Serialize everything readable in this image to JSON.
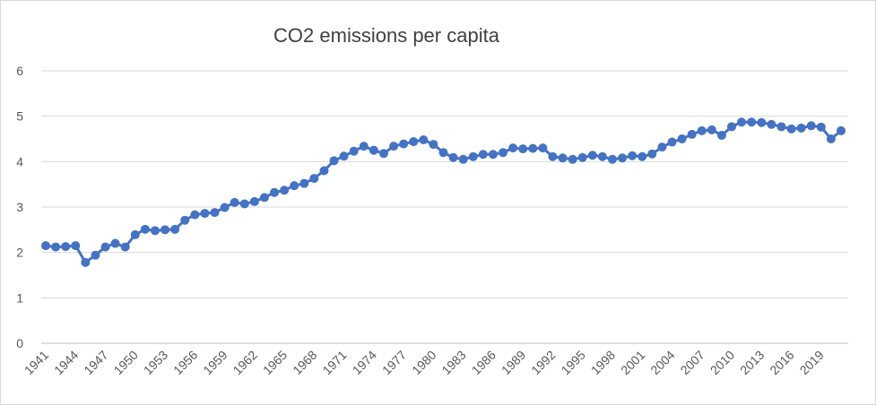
{
  "chart_data": {
    "type": "line",
    "title": "CO2 emissions per capita",
    "xlabel": "",
    "ylabel": "",
    "ylim": [
      0,
      6
    ],
    "y_ticks": [
      "0",
      "1",
      "2",
      "3",
      "4",
      "5",
      "6"
    ],
    "x_tick_labels": [
      "1941",
      "1944",
      "1947",
      "1950",
      "1953",
      "1956",
      "1959",
      "1962",
      "1965",
      "1968",
      "1971",
      "1974",
      "1977",
      "1980",
      "1983",
      "1986",
      "1989",
      "1992",
      "1995",
      "1998",
      "2001",
      "2004",
      "2007",
      "2010",
      "2013",
      "2016",
      "2019"
    ],
    "grid": "horizontal",
    "legend": "none",
    "colors": {
      "series": "#4472c4",
      "grid": "#d9d9d9",
      "axis": "#bfbfbf",
      "text": "#595959",
      "title": "#404040"
    },
    "x": [
      1941,
      1942,
      1943,
      1944,
      1945,
      1946,
      1947,
      1948,
      1949,
      1950,
      1951,
      1952,
      1953,
      1954,
      1955,
      1956,
      1957,
      1958,
      1959,
      1960,
      1961,
      1962,
      1963,
      1964,
      1965,
      1966,
      1967,
      1968,
      1969,
      1970,
      1971,
      1972,
      1973,
      1974,
      1975,
      1976,
      1977,
      1978,
      1979,
      1980,
      1981,
      1982,
      1983,
      1984,
      1985,
      1986,
      1987,
      1988,
      1989,
      1990,
      1991,
      1992,
      1993,
      1994,
      1995,
      1996,
      1997,
      1998,
      1999,
      2000,
      2001,
      2002,
      2003,
      2004,
      2005,
      2006,
      2007,
      2008,
      2009,
      2010,
      2011,
      2012,
      2013,
      2014,
      2015,
      2016,
      2017,
      2018,
      2019,
      2020,
      2021
    ],
    "series": [
      {
        "values": [
          2.15,
          2.12,
          2.13,
          2.15,
          1.78,
          1.94,
          2.12,
          2.2,
          2.12,
          2.39,
          2.51,
          2.48,
          2.5,
          2.51,
          2.71,
          2.83,
          2.86,
          2.88,
          2.99,
          3.1,
          3.07,
          3.12,
          3.21,
          3.32,
          3.37,
          3.47,
          3.52,
          3.63,
          3.8,
          4.02,
          4.12,
          4.23,
          4.34,
          4.25,
          4.18,
          4.34,
          4.39,
          4.44,
          4.48,
          4.38,
          4.2,
          4.09,
          4.05,
          4.11,
          4.16,
          4.16,
          4.2,
          4.3,
          4.28,
          4.29,
          4.3,
          4.11,
          4.08,
          4.05,
          4.09,
          4.14,
          4.11,
          4.05,
          4.08,
          4.13,
          4.11,
          4.17,
          4.32,
          4.43,
          4.5,
          4.6,
          4.68,
          4.7,
          4.58,
          4.77,
          4.87,
          4.87,
          4.86,
          4.82,
          4.77,
          4.72,
          4.74,
          4.79,
          4.76,
          4.5,
          4.68
        ]
      }
    ]
  }
}
